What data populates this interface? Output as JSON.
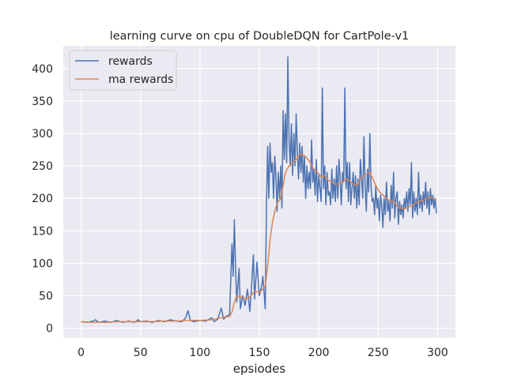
{
  "chart_data": {
    "type": "line",
    "title": "learning curve on cpu of DoubleDQN for CartPole-v1",
    "xlabel": "epsiodes",
    "ylabel": "",
    "xlim": [
      -15,
      315
    ],
    "ylim": [
      -15,
      435
    ],
    "xticks": [
      0,
      50,
      100,
      150,
      200,
      250,
      300
    ],
    "yticks": [
      0,
      50,
      100,
      150,
      200,
      250,
      300,
      350,
      400
    ],
    "grid": true,
    "legend_position": "top-left",
    "background_color": "#eaeaf2",
    "series": [
      {
        "name": "rewards",
        "color": "#4c72b0",
        "points": [
          [
            0,
            10
          ],
          [
            5,
            9
          ],
          [
            10,
            11
          ],
          [
            12,
            13
          ],
          [
            15,
            9
          ],
          [
            20,
            11
          ],
          [
            25,
            9
          ],
          [
            30,
            12
          ],
          [
            35,
            9
          ],
          [
            40,
            11
          ],
          [
            45,
            9
          ],
          [
            48,
            13
          ],
          [
            50,
            10
          ],
          [
            55,
            11
          ],
          [
            60,
            9
          ],
          [
            65,
            12
          ],
          [
            70,
            10
          ],
          [
            75,
            13
          ],
          [
            80,
            11
          ],
          [
            85,
            10
          ],
          [
            88,
            16
          ],
          [
            90,
            27
          ],
          [
            92,
            12
          ],
          [
            95,
            10
          ],
          [
            100,
            12
          ],
          [
            105,
            11
          ],
          [
            110,
            16
          ],
          [
            112,
            10
          ],
          [
            115,
            14
          ],
          [
            118,
            31
          ],
          [
            120,
            14
          ],
          [
            122,
            18
          ],
          [
            125,
            21
          ],
          [
            127,
            130
          ],
          [
            128,
            80
          ],
          [
            129,
            167
          ],
          [
            130,
            95
          ],
          [
            131,
            40
          ],
          [
            133,
            92
          ],
          [
            134,
            30
          ],
          [
            136,
            50
          ],
          [
            138,
            35
          ],
          [
            140,
            60
          ],
          [
            142,
            26
          ],
          [
            143,
            52
          ],
          [
            145,
            113
          ],
          [
            146,
            45
          ],
          [
            148,
            102
          ],
          [
            150,
            50
          ],
          [
            152,
            65
          ],
          [
            153,
            80
          ],
          [
            155,
            30
          ],
          [
            156,
            185
          ],
          [
            157,
            280
          ],
          [
            158,
            200
          ],
          [
            159,
            285
          ],
          [
            160,
            240
          ],
          [
            161,
            255
          ],
          [
            162,
            200
          ],
          [
            163,
            265
          ],
          [
            164,
            235
          ],
          [
            165,
            180
          ],
          [
            166,
            240
          ],
          [
            167,
            200
          ],
          [
            168,
            250
          ],
          [
            169,
            185
          ],
          [
            170,
            335
          ],
          [
            171,
            260
          ],
          [
            172,
            330
          ],
          [
            173,
            255
          ],
          [
            174,
            418
          ],
          [
            175,
            290
          ],
          [
            176,
            250
          ],
          [
            177,
            315
          ],
          [
            178,
            235
          ],
          [
            179,
            300
          ],
          [
            180,
            250
          ],
          [
            181,
            330
          ],
          [
            182,
            270
          ],
          [
            183,
            230
          ],
          [
            184,
            285
          ],
          [
            185,
            240
          ],
          [
            186,
            280
          ],
          [
            187,
            225
          ],
          [
            188,
            265
          ],
          [
            189,
            200
          ],
          [
            190,
            250
          ],
          [
            191,
            215
          ],
          [
            192,
            240
          ],
          [
            193,
            215
          ],
          [
            194,
            290
          ],
          [
            195,
            225
          ],
          [
            196,
            245
          ],
          [
            197,
            205
          ],
          [
            198,
            260
          ],
          [
            199,
            195
          ],
          [
            200,
            235
          ],
          [
            201,
            215
          ],
          [
            202,
            195
          ],
          [
            203,
            370
          ],
          [
            204,
            215
          ],
          [
            205,
            250
          ],
          [
            206,
            190
          ],
          [
            207,
            240
          ],
          [
            208,
            205
          ],
          [
            209,
            210
          ],
          [
            210,
            190
          ],
          [
            211,
            245
          ],
          [
            212,
            200
          ],
          [
            213,
            230
          ],
          [
            214,
            195
          ],
          [
            215,
            250
          ],
          [
            216,
            200
          ],
          [
            217,
            260
          ],
          [
            218,
            230
          ],
          [
            219,
            190
          ],
          [
            220,
            240
          ],
          [
            221,
            225
          ],
          [
            222,
            370
          ],
          [
            223,
            215
          ],
          [
            224,
            255
          ],
          [
            225,
            195
          ],
          [
            226,
            255
          ],
          [
            227,
            190
          ],
          [
            228,
            215
          ],
          [
            229,
            240
          ],
          [
            230,
            200
          ],
          [
            231,
            235
          ],
          [
            232,
            185
          ],
          [
            233,
            230
          ],
          [
            234,
            190
          ],
          [
            235,
            260
          ],
          [
            236,
            230
          ],
          [
            237,
            200
          ],
          [
            238,
            295
          ],
          [
            239,
            220
          ],
          [
            240,
            180
          ],
          [
            241,
            245
          ],
          [
            242,
            210
          ],
          [
            243,
            300
          ],
          [
            244,
            220
          ],
          [
            245,
            195
          ],
          [
            246,
            200
          ],
          [
            247,
            175
          ],
          [
            248,
            220
          ],
          [
            249,
            185
          ],
          [
            250,
            200
          ],
          [
            251,
            165
          ],
          [
            252,
            205
          ],
          [
            253,
            190
          ],
          [
            254,
            155
          ],
          [
            255,
            200
          ],
          [
            256,
            175
          ],
          [
            257,
            225
          ],
          [
            258,
            180
          ],
          [
            259,
            195
          ],
          [
            260,
            165
          ],
          [
            261,
            220
          ],
          [
            262,
            185
          ],
          [
            263,
            240
          ],
          [
            264,
            170
          ],
          [
            265,
            200
          ],
          [
            266,
            210
          ],
          [
            267,
            160
          ],
          [
            268,
            195
          ],
          [
            269,
            175
          ],
          [
            270,
            190
          ],
          [
            271,
            170
          ],
          [
            272,
            200
          ],
          [
            273,
            185
          ],
          [
            274,
            210
          ],
          [
            275,
            180
          ],
          [
            276,
            215
          ],
          [
            277,
            190
          ],
          [
            278,
            255
          ],
          [
            279,
            170
          ],
          [
            280,
            210
          ],
          [
            281,
            180
          ],
          [
            282,
            200
          ],
          [
            283,
            175
          ],
          [
            284,
            240
          ],
          [
            285,
            185
          ],
          [
            286,
            205
          ],
          [
            287,
            180
          ],
          [
            288,
            210
          ],
          [
            289,
            190
          ],
          [
            290,
            225
          ],
          [
            291,
            185
          ],
          [
            292,
            210
          ],
          [
            293,
            175
          ],
          [
            294,
            215
          ],
          [
            295,
            190
          ],
          [
            296,
            205
          ],
          [
            297,
            185
          ],
          [
            298,
            200
          ],
          [
            299,
            177
          ]
        ]
      },
      {
        "name": "ma rewards",
        "color": "#dd8452",
        "points": [
          [
            0,
            10
          ],
          [
            10,
            9
          ],
          [
            20,
            9
          ],
          [
            30,
            10
          ],
          [
            40,
            10
          ],
          [
            50,
            10
          ],
          [
            60,
            10
          ],
          [
            70,
            11
          ],
          [
            80,
            11
          ],
          [
            90,
            12
          ],
          [
            100,
            12
          ],
          [
            110,
            13
          ],
          [
            115,
            15
          ],
          [
            120,
            17
          ],
          [
            125,
            18
          ],
          [
            127,
            25
          ],
          [
            129,
            40
          ],
          [
            131,
            50
          ],
          [
            133,
            49
          ],
          [
            136,
            47
          ],
          [
            140,
            45
          ],
          [
            143,
            50
          ],
          [
            146,
            57
          ],
          [
            150,
            55
          ],
          [
            153,
            60
          ],
          [
            155,
            65
          ],
          [
            157,
            95
          ],
          [
            159,
            135
          ],
          [
            161,
            162
          ],
          [
            163,
            180
          ],
          [
            165,
            192
          ],
          [
            168,
            200
          ],
          [
            170,
            220
          ],
          [
            172,
            240
          ],
          [
            175,
            250
          ],
          [
            178,
            255
          ],
          [
            181,
            260
          ],
          [
            184,
            268
          ],
          [
            187,
            267
          ],
          [
            190,
            262
          ],
          [
            193,
            255
          ],
          [
            196,
            245
          ],
          [
            199,
            240
          ],
          [
            202,
            233
          ],
          [
            205,
            235
          ],
          [
            208,
            228
          ],
          [
            211,
            225
          ],
          [
            214,
            222
          ],
          [
            217,
            222
          ],
          [
            220,
            225
          ],
          [
            223,
            230
          ],
          [
            226,
            227
          ],
          [
            229,
            222
          ],
          [
            232,
            220
          ],
          [
            235,
            230
          ],
          [
            238,
            235
          ],
          [
            241,
            238
          ],
          [
            243,
            240
          ],
          [
            245,
            232
          ],
          [
            248,
            220
          ],
          [
            251,
            210
          ],
          [
            254,
            205
          ],
          [
            257,
            200
          ],
          [
            260,
            196
          ],
          [
            263,
            195
          ],
          [
            266,
            188
          ],
          [
            269,
            185
          ],
          [
            272,
            184
          ],
          [
            275,
            186
          ],
          [
            278,
            188
          ],
          [
            281,
            192
          ],
          [
            284,
            195
          ],
          [
            287,
            196
          ],
          [
            290,
            199
          ],
          [
            293,
            202
          ],
          [
            296,
            200
          ],
          [
            299,
            198
          ]
        ]
      }
    ]
  }
}
